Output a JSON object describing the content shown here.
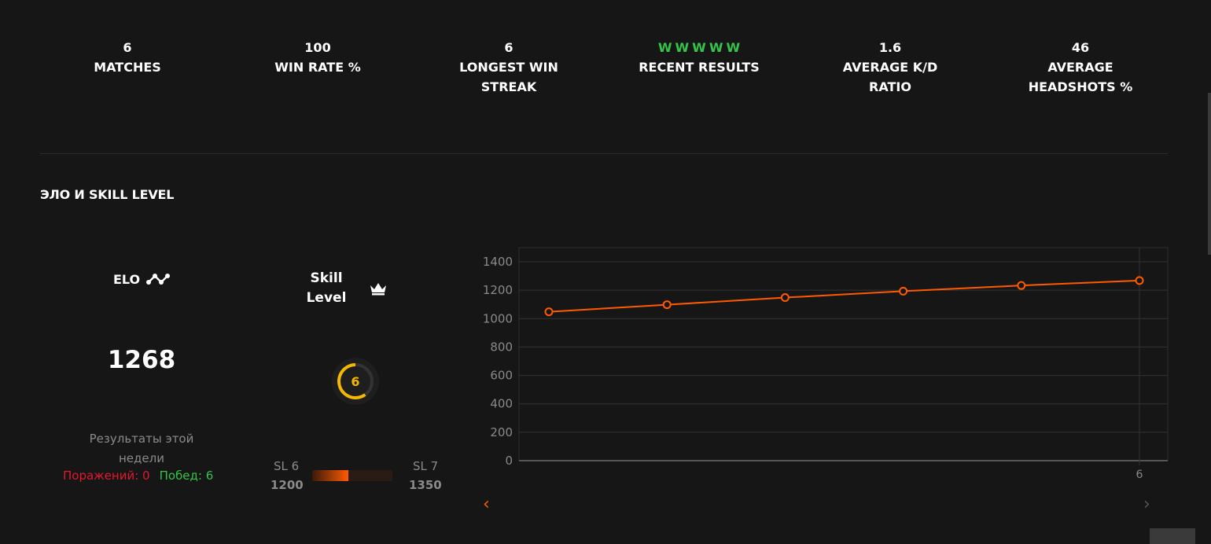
{
  "stats": [
    {
      "value": "6",
      "label": "MATCHES"
    },
    {
      "value": "100",
      "label": "WIN RATE %"
    },
    {
      "value": "6",
      "label": "LONGEST WIN\nSTREAK"
    },
    {
      "results": [
        "W",
        "W",
        "W",
        "W",
        "W"
      ],
      "label": "RECENT RESULTS"
    },
    {
      "value": "1.6",
      "label": "AVERAGE K/D\nRATIO"
    },
    {
      "value": "46",
      "label": "AVERAGE\nHEADSHOTS %"
    }
  ],
  "section": {
    "title": "ЭЛО И SKILL LEVEL"
  },
  "elo": {
    "title": "ELO",
    "value": "1268",
    "icon": "elo-trend-icon"
  },
  "week": {
    "title": "Результаты этой недели",
    "losses_label": "Поражений: 0",
    "wins_label": "Побед: 6"
  },
  "skill": {
    "title": "Skill Level",
    "level": "6",
    "icon": "crown-icon",
    "current_label": "SL 6",
    "current_elo": "1200",
    "next_label": "SL 7",
    "next_elo": "1350",
    "progress": 0.45
  },
  "colors": {
    "accent": "#ff5a00",
    "win": "#35c44a",
    "loss": "#e0192f",
    "gauge": "#f5b800"
  },
  "chart_data": {
    "type": "line",
    "x": [
      1,
      2,
      3,
      4,
      5,
      6
    ],
    "values": [
      1048,
      1098,
      1148,
      1193,
      1233,
      1268
    ],
    "x_ticks": [
      "6"
    ],
    "y_ticks": [
      0,
      200,
      400,
      600,
      800,
      1000,
      1200,
      1400
    ],
    "ylim": [
      0,
      1400
    ],
    "grid": true
  }
}
